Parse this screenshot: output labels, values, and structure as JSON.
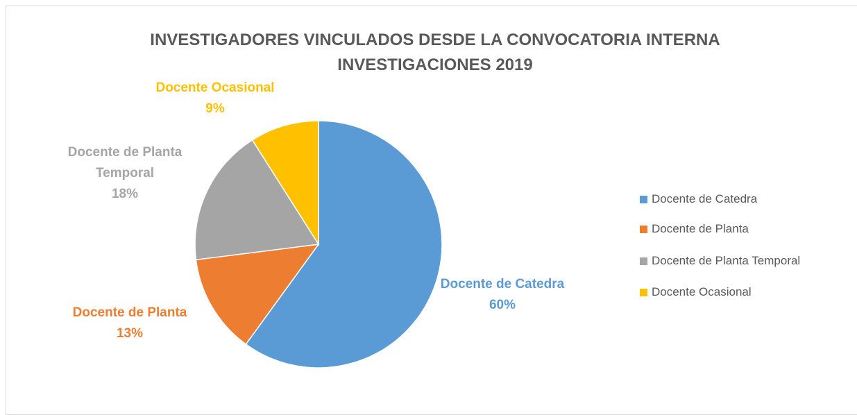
{
  "chart_data": {
    "type": "pie",
    "title": "INVESTIGADORES VINCULADOS DESDE LA CONVOCATORIA INTERNA INVESTIGACIONES 2019",
    "categories": [
      "Docente de Catedra",
      "Docente de Planta",
      "Docente de Planta Temporal",
      "Docente Ocasional"
    ],
    "values": [
      60,
      13,
      18,
      9
    ],
    "value_labels": [
      "60%",
      "13%",
      "18%",
      "9%"
    ],
    "colors": [
      "#5b9bd5",
      "#ed7d31",
      "#a5a5a5",
      "#ffc000"
    ],
    "legend": "right"
  }
}
